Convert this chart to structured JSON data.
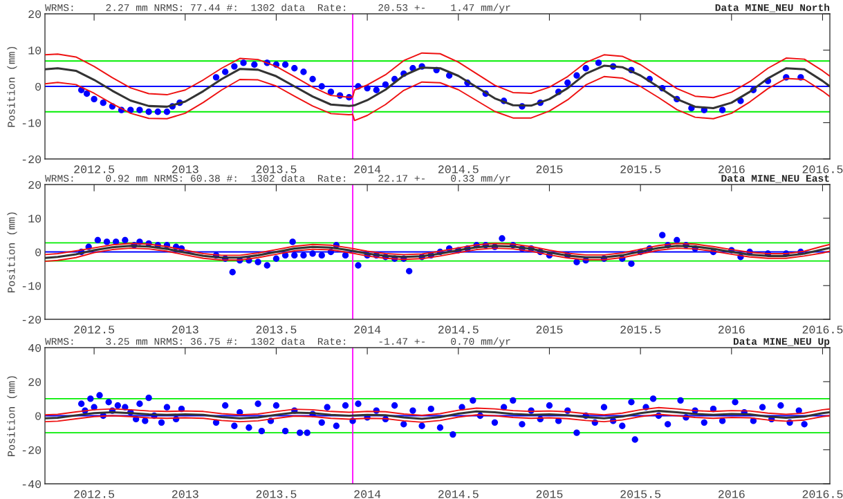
{
  "chart_data": [
    {
      "type": "scatter",
      "title": "Data MINE_NEU North",
      "subtitle": "WRMS:     2.27 mm NRMS: 77.44 #:  1302 data  Rate:     20.53 +-    1.47 mm/yr",
      "ylabel": "Position (mm)",
      "xlim": [
        2012.23,
        2016.54
      ],
      "xticks": [
        2012.5,
        2013,
        2013.5,
        2014,
        2014.5,
        2015,
        2015.5,
        2016,
        2016.5
      ],
      "ylim": [
        -20,
        20
      ],
      "yticks": [
        -20,
        -10,
        0,
        10,
        20
      ],
      "x": [
        2012.23,
        2012.3,
        2012.4,
        2012.5,
        2012.6,
        2012.7,
        2012.8,
        2012.9,
        2013.0,
        2013.1,
        2013.2,
        2013.3,
        2013.4,
        2013.5,
        2013.6,
        2013.7,
        2013.8,
        2013.9,
        2013.92,
        2013.93,
        2014.0,
        2014.1,
        2014.2,
        2014.3,
        2014.4,
        2014.5,
        2014.6,
        2014.7,
        2014.8,
        2014.9,
        2015.0,
        2015.1,
        2015.2,
        2015.3,
        2015.4,
        2015.5,
        2015.6,
        2015.7,
        2015.8,
        2015.9,
        2016.0,
        2016.1,
        2016.2,
        2016.3,
        2016.4,
        2016.5,
        2016.54
      ],
      "ref_lines": [
        {
          "axis": "y",
          "value": 7,
          "color": "#00ee00"
        },
        {
          "axis": "y",
          "value": -7,
          "color": "#00ee00"
        },
        {
          "axis": "y",
          "value": 0,
          "color": "#0000ff"
        },
        {
          "axis": "x",
          "value": 2013.92,
          "color": "#ff00ff"
        }
      ],
      "series": [
        {
          "color": "#0000ff",
          "marker": "circle",
          "x": [
            2012.43,
            2012.46,
            2012.5,
            2012.55,
            2012.6,
            2012.65,
            2012.7,
            2012.75,
            2012.8,
            2012.85,
            2012.9,
            2012.93,
            2012.97,
            2013.17,
            2013.22,
            2013.27,
            2013.32,
            2013.38,
            2013.45,
            2013.5,
            2013.55,
            2013.6,
            2013.65,
            2013.7,
            2013.75,
            2013.8,
            2013.85,
            2013.9,
            2013.95,
            2014.0,
            2014.05,
            2014.1,
            2014.15,
            2014.2,
            2014.25,
            2014.3,
            2014.38,
            2014.45,
            2014.55,
            2014.65,
            2014.75,
            2014.85,
            2014.95,
            2015.05,
            2015.1,
            2015.15,
            2015.2,
            2015.27,
            2015.35,
            2015.45,
            2015.55,
            2015.62,
            2015.7,
            2015.78,
            2015.85,
            2015.95,
            2016.05,
            2016.12,
            2016.2,
            2016.3,
            2016.38
          ],
          "values": [
            -1,
            -2,
            -3.5,
            -4.5,
            -5.5,
            -6.5,
            -6.5,
            -6.5,
            -7,
            -7,
            -7,
            -5.5,
            -4.5,
            2.5,
            4,
            5.5,
            6.5,
            6,
            6.5,
            6,
            6,
            5,
            4,
            2,
            0,
            -1.5,
            -2.5,
            -3,
            0,
            -0.5,
            -1,
            0.5,
            2,
            3.5,
            5,
            5.5,
            4.5,
            3,
            1,
            -2,
            -4,
            -5.5,
            -4.5,
            -1.5,
            1,
            3,
            5,
            6.5,
            5.5,
            4.5,
            2,
            -0.5,
            -3.5,
            -6,
            -6.5,
            -6.5,
            -4,
            -1,
            1.5,
            2.5,
            2.5
          ]
        },
        {
          "type": "line",
          "color": "#333333",
          "marker": "none",
          "values": [
            4.7,
            5.0,
            4.3,
            1.8,
            -1.2,
            -3.9,
            -5.4,
            -5.6,
            -4.2,
            -1.3,
            2.0,
            4.8,
            4.6,
            2.8,
            0.0,
            -2.8,
            -5.0,
            -5.4,
            -5.3,
            -5.2,
            -3.8,
            -0.9,
            3.0,
            5.2,
            5.0,
            2.9,
            -0.2,
            -3.3,
            -5.2,
            -5.3,
            -3.5,
            -0.5,
            3.5,
            5.7,
            5.3,
            3.0,
            -0.2,
            -3.5,
            -5.6,
            -6.0,
            -4.5,
            -1.5,
            2.2,
            5.0,
            4.7,
            1.5,
            0.0
          ]
        },
        {
          "type": "line",
          "color": "#ee1111",
          "marker": "none",
          "values": [
            8.7,
            8.9,
            8.1,
            5.5,
            2.4,
            -0.4,
            -2.0,
            -2.3,
            -1.0,
            1.8,
            5.0,
            7.7,
            7.4,
            5.5,
            2.7,
            -0.2,
            -2.5,
            -3.0,
            -2.9,
            -1.0,
            0.4,
            3.2,
            7.1,
            9.2,
            9.0,
            6.7,
            3.5,
            0.3,
            -1.7,
            -1.9,
            -0.2,
            2.7,
            6.6,
            8.7,
            8.3,
            6.0,
            2.7,
            -0.6,
            -2.7,
            -3.1,
            -1.6,
            1.3,
            5.0,
            7.8,
            7.5,
            4.3,
            2.8
          ]
        },
        {
          "type": "line",
          "color": "#ee1111",
          "marker": "none",
          "values": [
            0.7,
            1.1,
            0.5,
            -1.9,
            -4.8,
            -7.4,
            -8.8,
            -8.9,
            -7.4,
            -4.4,
            -1.0,
            1.9,
            1.8,
            0.1,
            -2.7,
            -5.4,
            -7.5,
            -7.8,
            -7.7,
            -9.4,
            -8.0,
            -5.0,
            -1.1,
            1.2,
            1.0,
            -0.9,
            -3.9,
            -6.9,
            -8.7,
            -8.7,
            -6.8,
            -3.7,
            0.4,
            2.7,
            2.3,
            0.0,
            -3.1,
            -6.4,
            -8.5,
            -8.9,
            -7.4,
            -4.3,
            -0.6,
            2.2,
            1.9,
            -1.3,
            -2.8
          ]
        }
      ]
    },
    {
      "type": "scatter",
      "title": "Data MINE_NEU East",
      "subtitle": "WRMS:     0.92 mm NRMS: 60.38 #:  1302 data  Rate:     22.17 +-    0.33 mm/yr",
      "ylabel": "Position (mm)",
      "xlim": [
        2012.23,
        2016.54
      ],
      "xticks": [
        2012.5,
        2013,
        2013.5,
        2014,
        2014.5,
        2015,
        2015.5,
        2016,
        2016.5
      ],
      "ylim": [
        -20,
        20
      ],
      "yticks": [
        -20,
        -10,
        0,
        10,
        20
      ],
      "x": [
        2012.23,
        2012.3,
        2012.4,
        2012.5,
        2012.6,
        2012.7,
        2012.8,
        2012.9,
        2013.0,
        2013.1,
        2013.2,
        2013.3,
        2013.4,
        2013.5,
        2013.6,
        2013.7,
        2013.8,
        2013.9,
        2014.0,
        2014.1,
        2014.2,
        2014.3,
        2014.4,
        2014.5,
        2014.6,
        2014.7,
        2014.8,
        2014.9,
        2015.0,
        2015.1,
        2015.2,
        2015.3,
        2015.4,
        2015.5,
        2015.6,
        2015.7,
        2015.8,
        2015.9,
        2016.0,
        2016.1,
        2016.2,
        2016.3,
        2016.4,
        2016.5,
        2016.54
      ],
      "ref_lines": [
        {
          "axis": "y",
          "value": 2.7,
          "color": "#00ee00"
        },
        {
          "axis": "y",
          "value": -2.7,
          "color": "#00ee00"
        },
        {
          "axis": "y",
          "value": 0,
          "color": "#0000ff"
        },
        {
          "axis": "x",
          "value": 2013.92,
          "color": "#ff00ff"
        }
      ],
      "series": [
        {
          "color": "#0000ff",
          "marker": "circle",
          "x": [
            2012.43,
            2012.47,
            2012.52,
            2012.57,
            2012.62,
            2012.67,
            2012.72,
            2012.75,
            2012.8,
            2012.85,
            2012.9,
            2012.95,
            2012.98,
            2013.17,
            2013.22,
            2013.26,
            2013.3,
            2013.35,
            2013.4,
            2013.45,
            2013.5,
            2013.55,
            2013.59,
            2013.6,
            2013.65,
            2013.7,
            2013.75,
            2013.8,
            2013.83,
            2013.88,
            2013.95,
            2014.0,
            2014.05,
            2014.1,
            2014.15,
            2014.2,
            2014.23,
            2014.3,
            2014.35,
            2014.4,
            2014.45,
            2014.5,
            2014.55,
            2014.6,
            2014.65,
            2014.7,
            2014.74,
            2014.8,
            2014.85,
            2014.9,
            2014.95,
            2015.0,
            2015.1,
            2015.15,
            2015.2,
            2015.3,
            2015.4,
            2015.45,
            2015.5,
            2015.55,
            2015.62,
            2015.65,
            2015.7,
            2015.75,
            2015.8,
            2015.9,
            2016.0,
            2016.05,
            2016.1,
            2016.2,
            2016.3,
            2016.38
          ],
          "values": [
            0,
            1.5,
            3.5,
            3,
            3,
            3.5,
            2,
            3,
            2.5,
            2,
            2,
            1.5,
            1,
            -1,
            -2,
            -6,
            -2.5,
            -2.5,
            -3,
            -4,
            -2,
            -1,
            3,
            -1,
            -1,
            -0.5,
            -1,
            0,
            2,
            -1,
            -4,
            -1,
            -1,
            -1.5,
            -2,
            -2,
            -5.7,
            -1.5,
            -1,
            0,
            1,
            0.5,
            1,
            2,
            2,
            1.5,
            4,
            2,
            1,
            1,
            0,
            -1,
            -1,
            -3,
            -2.5,
            -2,
            -2,
            -3.5,
            0,
            1,
            5,
            2,
            3.5,
            2,
            1,
            0,
            0.5,
            -1.5,
            0,
            -0.5,
            -0.5,
            0
          ]
        },
        {
          "type": "line",
          "color": "#333333",
          "marker": "none",
          "values": [
            -1.8,
            -1.5,
            -0.7,
            0.5,
            1.4,
            1.8,
            1.6,
            0.9,
            -0.2,
            -1.2,
            -1.7,
            -1.7,
            -1.0,
            0.0,
            1.0,
            1.5,
            1.3,
            0.5,
            -0.5,
            -1.2,
            -1.5,
            -1.3,
            -0.5,
            0.5,
            1.4,
            1.8,
            1.6,
            0.9,
            -0.2,
            -1.1,
            -1.6,
            -1.6,
            -1.0,
            0.1,
            1.2,
            1.8,
            1.6,
            0.9,
            0.0,
            -0.8,
            -1.2,
            -1.2,
            -0.5,
            0.7,
            1.2
          ]
        },
        {
          "type": "line",
          "color": "#ee1111",
          "marker": "none",
          "values": [
            -0.8,
            -0.5,
            0.3,
            1.2,
            2.1,
            2.5,
            2.3,
            1.6,
            0.5,
            -0.5,
            -1.0,
            -1.0,
            -0.3,
            0.7,
            1.7,
            2.2,
            2.0,
            1.2,
            0.2,
            -0.5,
            -0.8,
            -0.6,
            0.2,
            1.2,
            2.1,
            2.5,
            2.3,
            1.6,
            0.5,
            -0.4,
            -0.9,
            -0.9,
            -0.3,
            0.8,
            1.9,
            2.5,
            2.3,
            1.6,
            0.7,
            -0.1,
            -0.5,
            -0.5,
            0.2,
            1.7,
            2.2
          ]
        },
        {
          "type": "line",
          "color": "#ee1111",
          "marker": "none",
          "values": [
            -2.8,
            -2.5,
            -1.7,
            -0.2,
            0.7,
            1.1,
            0.9,
            0.2,
            -0.9,
            -1.9,
            -2.4,
            -2.4,
            -1.7,
            -0.7,
            0.3,
            0.8,
            0.6,
            -0.2,
            -1.2,
            -1.9,
            -2.2,
            -2.0,
            -1.2,
            -0.2,
            0.7,
            1.1,
            0.9,
            0.2,
            -0.9,
            -1.8,
            -2.3,
            -2.3,
            -1.7,
            -0.6,
            0.5,
            1.1,
            0.9,
            0.2,
            -0.7,
            -1.5,
            -1.9,
            -1.9,
            -1.2,
            -0.3,
            0.2
          ]
        }
      ]
    },
    {
      "type": "scatter",
      "title": "Data MINE_NEU Up",
      "subtitle": "WRMS:     3.25 mm NRMS: 36.75 #:  1302 data  Rate:     -1.47 +-    0.70 mm/yr",
      "ylabel": "Position (mm)",
      "xlim": [
        2012.23,
        2016.54
      ],
      "xticks": [
        2012.5,
        2013,
        2013.5,
        2014,
        2014.5,
        2015,
        2015.5,
        2016,
        2016.5
      ],
      "ylim": [
        -40,
        40
      ],
      "yticks": [
        -40,
        -20,
        0,
        20,
        40
      ],
      "x": [
        2012.23,
        2012.3,
        2012.4,
        2012.5,
        2012.6,
        2012.7,
        2012.8,
        2012.9,
        2013.0,
        2013.1,
        2013.2,
        2013.3,
        2013.4,
        2013.5,
        2013.6,
        2013.7,
        2013.8,
        2013.9,
        2014.0,
        2014.1,
        2014.2,
        2014.3,
        2014.4,
        2014.5,
        2014.6,
        2014.7,
        2014.8,
        2014.9,
        2015.0,
        2015.1,
        2015.2,
        2015.3,
        2015.4,
        2015.5,
        2015.6,
        2015.7,
        2015.8,
        2015.9,
        2016.0,
        2016.1,
        2016.2,
        2016.3,
        2016.4,
        2016.5,
        2016.54
      ],
      "ref_lines": [
        {
          "axis": "y",
          "value": 10,
          "color": "#00ee00"
        },
        {
          "axis": "y",
          "value": -10,
          "color": "#00ee00"
        },
        {
          "axis": "y",
          "value": 0,
          "color": "#0000ff"
        },
        {
          "axis": "x",
          "value": 2013.92,
          "color": "#ff00ff"
        }
      ],
      "series": [
        {
          "color": "#0000ff",
          "marker": "circle",
          "x": [
            2012.43,
            2012.45,
            2012.48,
            2012.5,
            2012.53,
            2012.55,
            2012.58,
            2012.6,
            2012.63,
            2012.67,
            2012.7,
            2012.73,
            2012.75,
            2012.78,
            2012.8,
            2012.83,
            2012.87,
            2012.9,
            2012.95,
            2012.98,
            2013.17,
            2013.22,
            2013.27,
            2013.3,
            2013.35,
            2013.4,
            2013.42,
            2013.47,
            2013.5,
            2013.55,
            2013.6,
            2013.63,
            2013.67,
            2013.7,
            2013.75,
            2013.78,
            2013.83,
            2013.88,
            2013.92,
            2013.95,
            2014.0,
            2014.05,
            2014.1,
            2014.15,
            2014.2,
            2014.25,
            2014.3,
            2014.35,
            2014.4,
            2014.47,
            2014.52,
            2014.58,
            2014.62,
            2014.7,
            2014.75,
            2014.8,
            2014.85,
            2014.9,
            2014.95,
            2015.0,
            2015.05,
            2015.1,
            2015.15,
            2015.2,
            2015.25,
            2015.3,
            2015.35,
            2015.4,
            2015.45,
            2015.47,
            2015.53,
            2015.57,
            2015.6,
            2015.65,
            2015.72,
            2015.75,
            2015.8,
            2015.85,
            2015.9,
            2015.95,
            2016.02,
            2016.07,
            2016.12,
            2016.17,
            2016.22,
            2016.27,
            2016.32,
            2016.37,
            2016.4
          ],
          "values": [
            7,
            3,
            10,
            5,
            12,
            0,
            8,
            3,
            6,
            5,
            2,
            -2,
            7,
            -3,
            10.5,
            0,
            -4,
            5,
            -2,
            4,
            -4,
            6,
            -6,
            2,
            -7,
            7,
            -9,
            -3,
            6,
            -9,
            3,
            -10,
            -10,
            1,
            -4,
            5,
            -6,
            6,
            -3,
            7,
            -1,
            3,
            -2,
            6,
            -5,
            3,
            -6,
            4,
            -7,
            -11,
            5,
            9,
            0,
            -4,
            5,
            9,
            -5,
            3,
            -2,
            6,
            -3,
            3,
            -10,
            0,
            -4,
            5,
            -3,
            -6,
            8,
            -14,
            5,
            10,
            0,
            -5,
            9,
            -1,
            3,
            -4,
            4,
            -3,
            8,
            2,
            -3,
            5,
            -2,
            6,
            -4,
            3,
            -5
          ]
        },
        {
          "type": "line",
          "color": "#333333",
          "marker": "none",
          "values": [
            -1.5,
            -1.2,
            0.2,
            1.5,
            2.0,
            1.5,
            0.8,
            0.5,
            0.8,
            0.5,
            -0.8,
            -1.5,
            -1.0,
            0.5,
            1.8,
            1.5,
            0.5,
            0.0,
            0.5,
            0.3,
            -1.0,
            -1.8,
            -0.8,
            1.2,
            2.5,
            2.0,
            1.0,
            0.5,
            0.8,
            0.3,
            -0.8,
            -1.5,
            -0.5,
            1.5,
            2.8,
            2.0,
            1.0,
            0.5,
            1.0,
            0.8,
            -0.5,
            -1.2,
            -0.5,
            1.5,
            2.0
          ]
        },
        {
          "type": "line",
          "color": "#ee1111",
          "marker": "none",
          "values": [
            0.5,
            0.8,
            2.2,
            3.5,
            4.0,
            3.5,
            2.8,
            2.5,
            2.8,
            2.5,
            1.2,
            0.5,
            1.0,
            2.5,
            3.8,
            3.5,
            2.5,
            2.0,
            2.5,
            2.3,
            1.0,
            0.2,
            1.2,
            3.2,
            4.5,
            4.0,
            3.0,
            2.5,
            2.8,
            2.3,
            1.2,
            0.5,
            1.5,
            3.5,
            4.8,
            4.0,
            3.0,
            2.5,
            3.0,
            2.8,
            1.5,
            0.8,
            1.5,
            3.5,
            4.0
          ]
        },
        {
          "type": "line",
          "color": "#ee1111",
          "marker": "none",
          "values": [
            -3.5,
            -3.2,
            -1.8,
            -0.5,
            0.0,
            -0.5,
            -1.2,
            -1.5,
            -1.2,
            -1.5,
            -2.8,
            -3.5,
            -3.0,
            -1.5,
            -0.2,
            -0.5,
            -1.5,
            -2.0,
            -1.5,
            -1.7,
            -3.0,
            -3.8,
            -2.8,
            -0.8,
            0.5,
            0.0,
            -1.0,
            -1.5,
            -1.2,
            -1.7,
            -2.8,
            -3.5,
            -2.5,
            -0.5,
            0.8,
            0.0,
            -1.0,
            -1.5,
            -1.0,
            -1.2,
            -2.5,
            -3.2,
            -2.5,
            -0.5,
            0.0
          ]
        }
      ]
    }
  ]
}
